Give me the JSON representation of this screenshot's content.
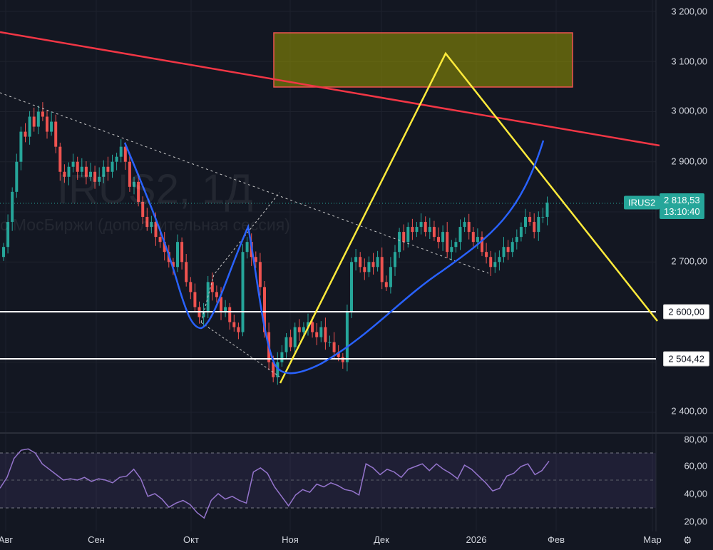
{
  "watermark": {
    "symbol_line": "IRUS2, 1Д",
    "source_line": "с МосБиржи (дополнительная сессия)"
  },
  "price_axis": {
    "ticks": [
      "3 200,00",
      "3 100,00",
      "3 000,00",
      "2 900,00",
      "2 700,00",
      "2 400,00"
    ]
  },
  "current_price": {
    "symbol": "IRUS2",
    "price": "2 818,53",
    "countdown": "13:10:40",
    "color": "#26a69a"
  },
  "horizontal_levels": [
    {
      "label": "2 600,00",
      "value": 2600
    },
    {
      "label": "2 504,42",
      "value": 2504.42
    }
  ],
  "rsi_axis": {
    "ticks": [
      "80,00",
      "60,00",
      "40,00",
      "20,00"
    ]
  },
  "time_axis": {
    "ticks": [
      "Авг",
      "Сен",
      "Окт",
      "Ноя",
      "Дек",
      "2026",
      "Фев",
      "Мар"
    ]
  },
  "colors": {
    "up": "#26a69a",
    "down": "#ef5350",
    "rsi": "#9575cd",
    "trendline": "#f23645",
    "zigzag": "#ffeb3b",
    "curve": "#2962ff"
  },
  "chart_data": {
    "type": "candlestick",
    "symbol": "IRUS2",
    "interval": "1Д",
    "ylim": [
      2350,
      3230
    ],
    "closes": [
      2730,
      2780,
      2840,
      2900,
      2960,
      2950,
      2990,
      2970,
      3000,
      2990,
      2960,
      2980,
      2930,
      2880,
      2870,
      2890,
      2900,
      2880,
      2890,
      2870,
      2880,
      2860,
      2870,
      2890,
      2880,
      2900,
      2910,
      2930,
      2900,
      2850,
      2860,
      2820,
      2790,
      2770,
      2780,
      2750,
      2740,
      2720,
      2700,
      2690,
      2740,
      2700,
      2660,
      2640,
      2610,
      2590,
      2600,
      2660,
      2640,
      2630,
      2600,
      2610,
      2580,
      2570,
      2560,
      2720,
      2740,
      2710,
      2700,
      2650,
      2560,
      2500,
      2470,
      2500,
      2520,
      2550,
      2530,
      2570,
      2560,
      2570,
      2580,
      2560,
      2550,
      2570,
      2540,
      2540,
      2520,
      2510,
      2500,
      2600,
      2700,
      2710,
      2690,
      2680,
      2700,
      2690,
      2710,
      2660,
      2650,
      2690,
      2720,
      2760,
      2740,
      2770,
      2760,
      2770,
      2780,
      2760,
      2770,
      2750,
      2740,
      2760,
      2720,
      2730,
      2740,
      2770,
      2780,
      2760,
      2740,
      2750,
      2720,
      2710,
      2690,
      2700,
      2710,
      2730,
      2720,
      2740,
      2750,
      2770,
      2790,
      2780,
      2760,
      2790,
      2790,
      2818.53
    ],
    "rsi": {
      "ylim": [
        15,
        85
      ],
      "band": [
        30,
        70
      ],
      "mid": 50,
      "values": [
        44,
        52,
        66,
        72,
        73,
        70,
        62,
        58,
        54,
        50,
        51,
        50,
        52,
        49,
        51,
        50,
        48,
        52,
        53,
        58,
        51,
        38,
        40,
        36,
        30,
        33,
        35,
        32,
        26,
        22,
        35,
        40,
        36,
        38,
        35,
        33,
        56,
        59,
        55,
        45,
        38,
        31,
        39,
        43,
        41,
        47,
        45,
        48,
        46,
        43,
        42,
        39,
        62,
        59,
        54,
        58,
        56,
        52,
        58,
        60,
        62,
        57,
        62,
        58,
        55,
        51,
        61,
        58,
        53,
        48,
        42,
        44,
        53,
        55,
        60,
        62,
        54,
        57,
        64
      ]
    },
    "trendline_dotted": {
      "from": 2990,
      "to": 2630
    }
  }
}
